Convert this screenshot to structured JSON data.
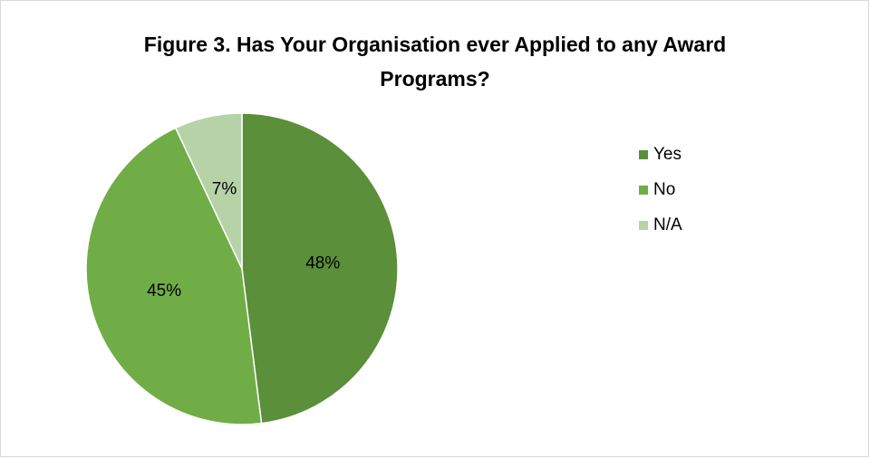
{
  "chart_data": {
    "type": "pie",
    "title": "Figure 3. Has Your Organisation ever Applied to any Award Programs?",
    "categories": [
      "Yes",
      "No",
      "N/A"
    ],
    "values": [
      48,
      45,
      7
    ],
    "value_labels": [
      "48%",
      "45%",
      "7%"
    ],
    "colors": [
      "#5b8f3a",
      "#70ad47",
      "#b5d3a7"
    ],
    "legend": "right"
  }
}
